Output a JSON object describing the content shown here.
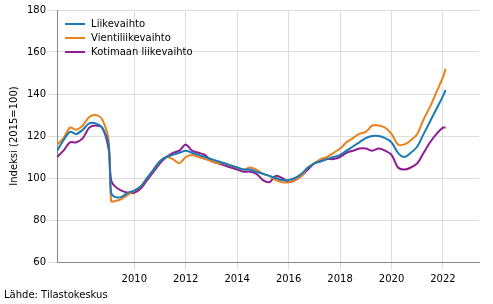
{
  "chart_data": {
    "type": "line",
    "y_label": "Indeksi (2015=100)",
    "source": "Lähde: Tilastokeskus",
    "x": [
      2007,
      2007.25,
      2007.5,
      2007.75,
      2008,
      2008.25,
      2008.5,
      2008.75,
      2009,
      2009.1,
      2009.25,
      2009.5,
      2009.75,
      2010,
      2010.25,
      2010.5,
      2010.75,
      2011,
      2011.25,
      2011.5,
      2011.75,
      2012,
      2012.25,
      2012.5,
      2012.75,
      2013,
      2013.25,
      2013.5,
      2013.75,
      2014,
      2014.25,
      2014.5,
      2014.75,
      2015,
      2015.25,
      2015.5,
      2015.75,
      2016,
      2016.25,
      2016.5,
      2016.75,
      2017,
      2017.25,
      2017.5,
      2017.75,
      2018,
      2018.25,
      2018.5,
      2018.75,
      2019,
      2019.25,
      2019.5,
      2019.75,
      2020,
      2020.25,
      2020.5,
      2020.75,
      2021,
      2021.25,
      2021.5,
      2021.75,
      2022,
      2022.1
    ],
    "series": [
      {
        "name": "Liikevaihto",
        "color": "#1a7ab5",
        "values": [
          113,
          118,
          122,
          121,
          123,
          126,
          126,
          124,
          116,
          93,
          91,
          91,
          93,
          94,
          96,
          100,
          104,
          108,
          110,
          111,
          112,
          113,
          112,
          111,
          110,
          109,
          108,
          107,
          106,
          105,
          104,
          104,
          103,
          102,
          101,
          100,
          99,
          99,
          100,
          102,
          105,
          107,
          108,
          109,
          110,
          111,
          113,
          115,
          117,
          119,
          120,
          120,
          119,
          117,
          112,
          110,
          112,
          115,
          121,
          127,
          133,
          139,
          142
        ]
      },
      {
        "name": "Vientiliikevaihto",
        "color": "#e8821e",
        "values": [
          116,
          119,
          124,
          123,
          125,
          129,
          130,
          128,
          118,
          89,
          89,
          90,
          92,
          94,
          96,
          100,
          104,
          108,
          110,
          109,
          107,
          110,
          111,
          110,
          109,
          108,
          107,
          107,
          106,
          105,
          104,
          105,
          104,
          102,
          101,
          99,
          98,
          98,
          99,
          101,
          105,
          107,
          109,
          110,
          112,
          114,
          117,
          119,
          121,
          122,
          125,
          125,
          124,
          121,
          116,
          116,
          118,
          121,
          128,
          134,
          141,
          148,
          152
        ]
      },
      {
        "name": "Kotimaan liikevaihto",
        "color": "#8e1e8e",
        "values": [
          110,
          113,
          117,
          117,
          119,
          124,
          125,
          124,
          114,
          99,
          96,
          94,
          93,
          93,
          95,
          99,
          103,
          107,
          110,
          112,
          113,
          116,
          113,
          112,
          111,
          108,
          107,
          106,
          105,
          104,
          103,
          103,
          102,
          99,
          98,
          101,
          100,
          98,
          99,
          101,
          104,
          107,
          108,
          109,
          109,
          110,
          112,
          113,
          114,
          114,
          113,
          114,
          113,
          111,
          105,
          104,
          105,
          107,
          112,
          117,
          121,
          124,
          124
        ]
      }
    ],
    "xlim": [
      2007,
      2023.4
    ],
    "xticks": [
      2010,
      2012,
      2014,
      2016,
      2018,
      2020,
      2022
    ],
    "ylim": [
      60,
      180
    ],
    "yticks": [
      60,
      80,
      100,
      120,
      140,
      160,
      180
    ],
    "grid": true,
    "legend": "top-left"
  }
}
